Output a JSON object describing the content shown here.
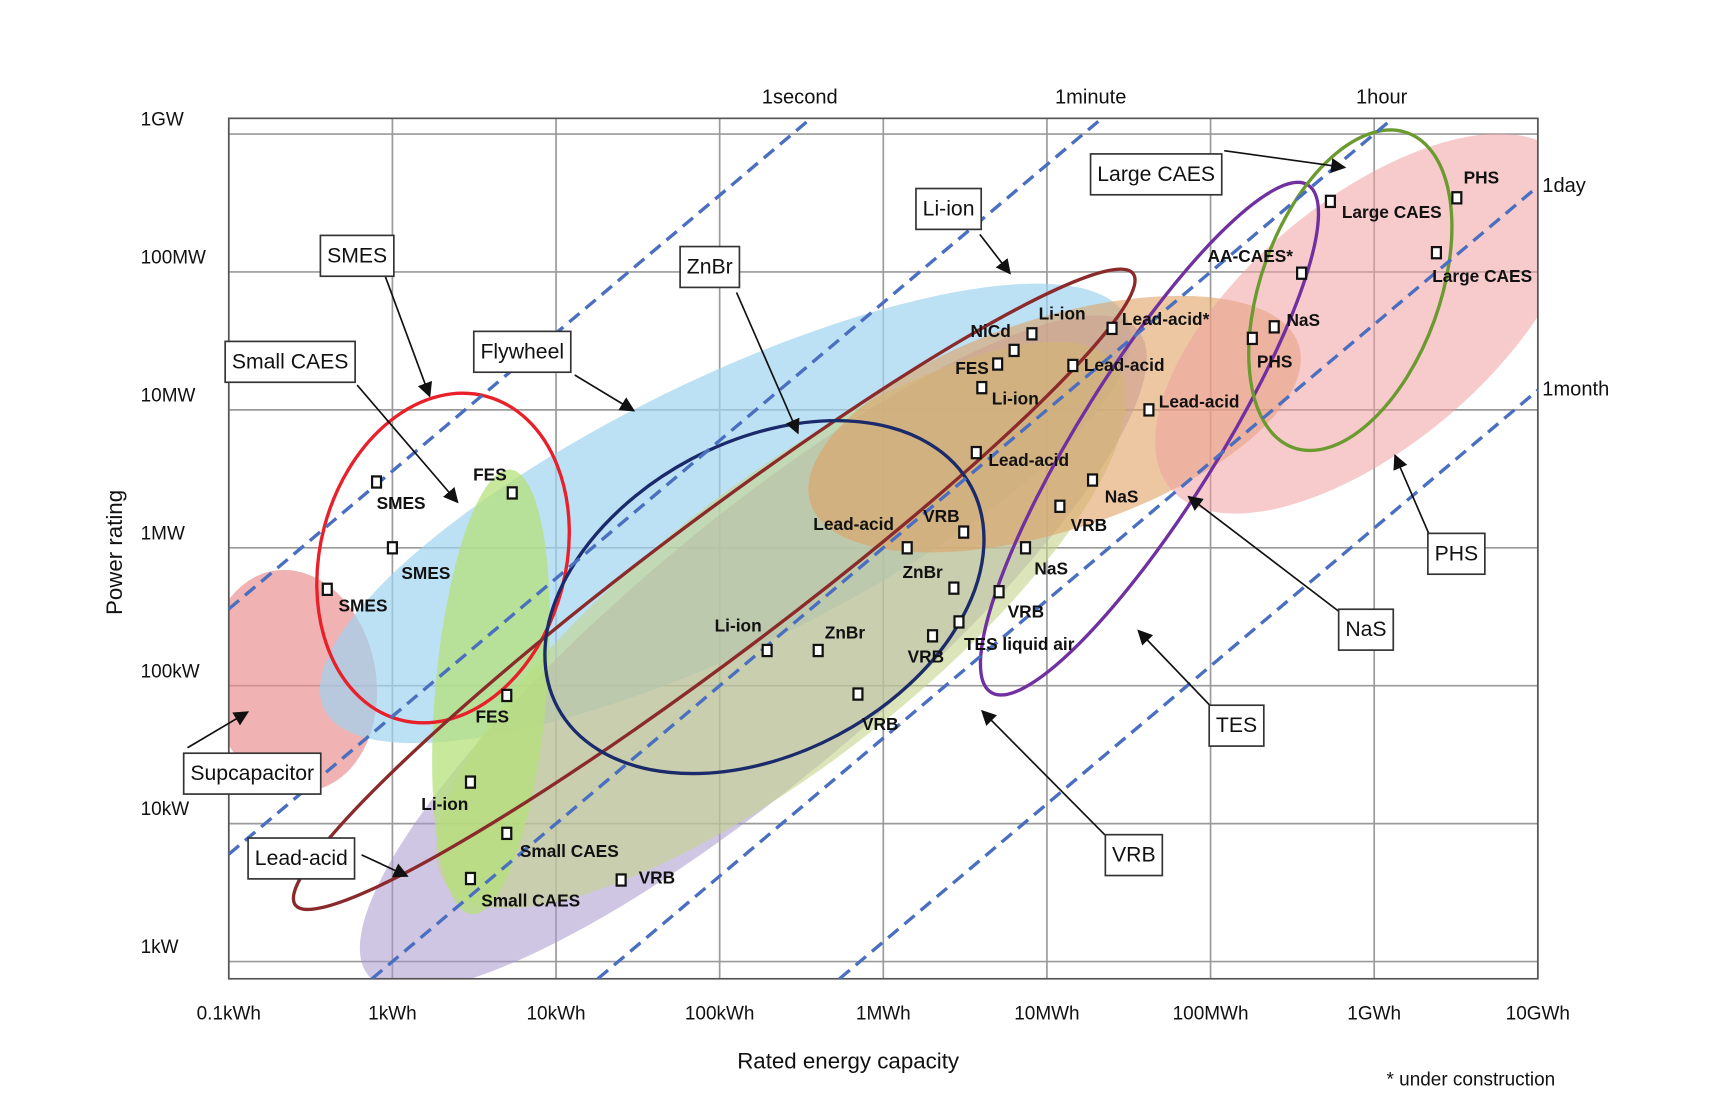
{
  "chart_data": {
    "type": "scatter",
    "x_label": "Rated energy capacity",
    "y_label": "Power rating",
    "footnote": "* under construction",
    "log_x": true,
    "log_y": true,
    "grid": true,
    "xlim": [
      0.1,
      10000000
    ],
    "ylim": [
      0.75,
      1300000
    ],
    "xticks": [
      {
        "value": 0.1,
        "label": "0.1kWh"
      },
      {
        "value": 1,
        "label": "1kWh"
      },
      {
        "value": 10,
        "label": "10kWh"
      },
      {
        "value": 100,
        "label": "100kWh"
      },
      {
        "value": 1000,
        "label": "1MWh"
      },
      {
        "value": 10000,
        "label": "10MWh"
      },
      {
        "value": 100000,
        "label": "100MWh"
      },
      {
        "value": 1000000,
        "label": "1GWh"
      },
      {
        "value": 10000000,
        "label": "10GWh"
      }
    ],
    "yticks": [
      {
        "value": 1,
        "label": "1kW"
      },
      {
        "value": 10,
        "label": "10kW"
      },
      {
        "value": 100,
        "label": "100kW"
      },
      {
        "value": 1000,
        "label": "1MW"
      },
      {
        "value": 10000,
        "label": "10MW"
      },
      {
        "value": 100000,
        "label": "100MW"
      },
      {
        "value": 1000000,
        "label": "1GW"
      }
    ],
    "x": [
      0.8,
      1,
      0.4,
      5.4,
      5,
      3,
      5,
      3,
      25,
      195,
      400,
      700,
      2000,
      2900,
      2700,
      1400,
      3100,
      5100,
      7400,
      12000,
      19000,
      3700,
      4000,
      5000,
      6300,
      8100,
      14400,
      25000,
      42000,
      180000,
      245000,
      360000,
      540000,
      3200000,
      2400000
    ],
    "values": [
      3000,
      1000,
      500,
      2500,
      85,
      20,
      8.5,
      4,
      3.9,
      180,
      180,
      87,
      230,
      290,
      510,
      1000,
      1300,
      480,
      1000,
      2000,
      3100,
      4900,
      14500,
      21500,
      27000,
      35600,
      21000,
      39000,
      10000,
      33000,
      40000,
      98000,
      325000,
      345000,
      138000
    ],
    "point_labels": [
      "SMES",
      "SMES",
      "SMES",
      "FES",
      "FES",
      "Li-ion",
      "Small CAES",
      "Small CAES",
      "VRB",
      "Li-ion",
      "ZnBr",
      "VRB",
      "VRB",
      "TES liquid air",
      "ZnBr",
      "Lead-acid",
      "VRB",
      "VRB",
      "NaS",
      "VRB",
      "NaS",
      "Lead-acid",
      "Li-ion",
      "FES",
      "NiCd",
      "Li-ion",
      "Lead-acid",
      "Lead-acid*",
      "Lead-acid",
      "PHS",
      "NaS",
      "AA-CAES*",
      "Large CAES",
      "PHS",
      "Large CAES"
    ],
    "reference_lines": [
      {
        "label": "1second",
        "seconds": 1
      },
      {
        "label": "1minute",
        "seconds": 60
      },
      {
        "label": "1hour",
        "seconds": 3600
      },
      {
        "label": "1day",
        "seconds": 86400
      },
      {
        "label": "1month",
        "seconds": 2592000
      }
    ],
    "region_labels": [
      "SMES",
      "Small CAES",
      "Flywheel",
      "ZnBr",
      "Li-ion",
      "Large CAES",
      "PHS",
      "NaS",
      "TES",
      "VRB",
      "Supcapacitor",
      "Lead-acid"
    ]
  }
}
